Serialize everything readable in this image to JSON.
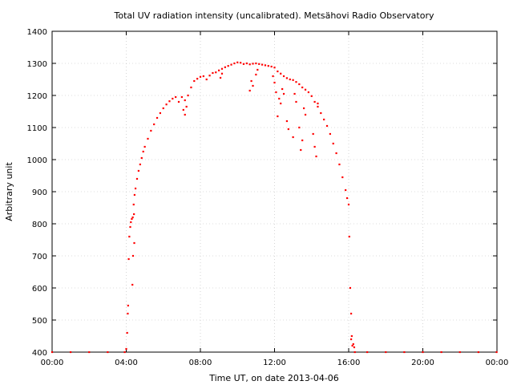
{
  "chart_data": {
    "type": "scatter",
    "title": "Total UV radiation intensity (uncalibrated). Metsähovi Radio Observatory",
    "xlabel": "Time UT, on date 2013-04-06",
    "ylabel": "Arbitrary unit",
    "xlim": [
      "00:00",
      "24:00"
    ],
    "ylim": [
      400,
      1400
    ],
    "x_ticks": [
      "00:00",
      "04:00",
      "08:00",
      "12:00",
      "16:00",
      "20:00",
      "00:00"
    ],
    "y_ticks": [
      "400",
      "500",
      "600",
      "700",
      "800",
      "900",
      "1000",
      "1100",
      "1200",
      "1300",
      "1400"
    ],
    "grid": true,
    "legend": "none",
    "marker_color": "#ff0000",
    "series": [
      {
        "points": [
          [
            "00:00",
            400
          ],
          [
            "01:00",
            400
          ],
          [
            "02:00",
            400
          ],
          [
            "03:00",
            400
          ],
          [
            "03:55",
            400
          ],
          [
            "04:00",
            410
          ],
          [
            "04:03",
            460
          ],
          [
            "04:05",
            520
          ],
          [
            "04:06",
            545
          ],
          [
            "04:08",
            690
          ],
          [
            "04:10",
            760
          ],
          [
            "04:13",
            790
          ],
          [
            "04:15",
            805
          ],
          [
            "04:18",
            815
          ],
          [
            "04:21",
            820
          ],
          [
            "04:24",
            860
          ],
          [
            "04:27",
            890
          ],
          [
            "04:30",
            910
          ],
          [
            "04:35",
            940
          ],
          [
            "04:40",
            965
          ],
          [
            "04:45",
            985
          ],
          [
            "04:50",
            1005
          ],
          [
            "04:55",
            1025
          ],
          [
            "05:00",
            1040
          ],
          [
            "05:10",
            1065
          ],
          [
            "05:20",
            1090
          ],
          [
            "05:30",
            1110
          ],
          [
            "05:40",
            1130
          ],
          [
            "05:50",
            1145
          ],
          [
            "06:00",
            1160
          ],
          [
            "06:10",
            1172
          ],
          [
            "06:20",
            1182
          ],
          [
            "06:30",
            1190
          ],
          [
            "06:40",
            1195
          ],
          [
            "06:50",
            1180
          ],
          [
            "07:00",
            1195
          ],
          [
            "07:10",
            1185
          ],
          [
            "07:20",
            1200
          ],
          [
            "07:30",
            1225
          ],
          [
            "07:40",
            1245
          ],
          [
            "07:50",
            1252
          ],
          [
            "08:00",
            1258
          ],
          [
            "08:10",
            1260
          ],
          [
            "08:20",
            1250
          ],
          [
            "08:30",
            1262
          ],
          [
            "08:40",
            1270
          ],
          [
            "08:50",
            1272
          ],
          [
            "09:00",
            1278
          ],
          [
            "09:10",
            1283
          ],
          [
            "09:20",
            1288
          ],
          [
            "09:30",
            1292
          ],
          [
            "09:40",
            1296
          ],
          [
            "09:50",
            1300
          ],
          [
            "10:00",
            1303
          ],
          [
            "10:10",
            1302
          ],
          [
            "10:20",
            1298
          ],
          [
            "10:30",
            1300
          ],
          [
            "10:40",
            1297
          ],
          [
            "10:50",
            1299
          ],
          [
            "11:00",
            1300
          ],
          [
            "11:10",
            1298
          ],
          [
            "11:20",
            1296
          ],
          [
            "11:30",
            1294
          ],
          [
            "11:40",
            1292
          ],
          [
            "11:50",
            1290
          ],
          [
            "12:00",
            1287
          ],
          [
            "12:10",
            1275
          ],
          [
            "12:20",
            1268
          ],
          [
            "12:30",
            1260
          ],
          [
            "12:40",
            1254
          ],
          [
            "12:50",
            1250
          ],
          [
            "13:00",
            1248
          ],
          [
            "13:10",
            1242
          ],
          [
            "13:20",
            1235
          ],
          [
            "13:30",
            1225
          ],
          [
            "13:40",
            1218
          ],
          [
            "13:50",
            1210
          ],
          [
            "14:00",
            1198
          ],
          [
            "14:10",
            1180
          ],
          [
            "14:20",
            1165
          ],
          [
            "14:30",
            1145
          ],
          [
            "14:40",
            1125
          ],
          [
            "14:50",
            1105
          ],
          [
            "15:00",
            1080
          ],
          [
            "15:10",
            1050
          ],
          [
            "15:20",
            1020
          ],
          [
            "15:30",
            985
          ],
          [
            "15:40",
            945
          ],
          [
            "15:50",
            905
          ],
          [
            "15:55",
            880
          ],
          [
            "16:00",
            860
          ],
          [
            "16:02",
            760
          ],
          [
            "16:05",
            600
          ],
          [
            "16:08",
            520
          ],
          [
            "16:10",
            450
          ],
          [
            "16:12",
            420
          ],
          [
            "16:20",
            400
          ],
          [
            "17:00",
            400
          ],
          [
            "18:00",
            400
          ],
          [
            "19:00",
            400
          ],
          [
            "20:00",
            400
          ],
          [
            "21:00",
            400
          ],
          [
            "22:00",
            400
          ],
          [
            "23:00",
            400
          ],
          [
            "23:59",
            400
          ]
        ]
      },
      {
        "points": [
          [
            "04:22",
            700
          ],
          [
            "04:26",
            740
          ],
          [
            "04:20",
            610
          ],
          [
            "04:25",
            830
          ],
          [
            "07:05",
            1155
          ],
          [
            "07:10",
            1140
          ],
          [
            "07:15",
            1165
          ],
          [
            "09:05",
            1255
          ],
          [
            "09:10",
            1268
          ],
          [
            "10:40",
            1215
          ],
          [
            "10:45",
            1245
          ],
          [
            "10:50",
            1230
          ],
          [
            "11:00",
            1265
          ],
          [
            "11:05",
            1280
          ],
          [
            "11:55",
            1260
          ],
          [
            "12:00",
            1240
          ],
          [
            "12:05",
            1210
          ],
          [
            "12:10",
            1135
          ],
          [
            "12:15",
            1190
          ],
          [
            "12:20",
            1175
          ],
          [
            "12:25",
            1220
          ],
          [
            "12:30",
            1205
          ],
          [
            "12:40",
            1120
          ],
          [
            "12:45",
            1095
          ],
          [
            "13:00",
            1070
          ],
          [
            "13:05",
            1205
          ],
          [
            "13:10",
            1180
          ],
          [
            "13:20",
            1100
          ],
          [
            "13:25",
            1030
          ],
          [
            "13:30",
            1060
          ],
          [
            "13:35",
            1160
          ],
          [
            "13:40",
            1140
          ],
          [
            "14:05",
            1080
          ],
          [
            "14:10",
            1040
          ],
          [
            "14:15",
            1010
          ],
          [
            "14:20",
            1175
          ],
          [
            "16:08",
            440
          ],
          [
            "16:15",
            425
          ],
          [
            "16:18",
            415
          ]
        ]
      }
    ]
  }
}
